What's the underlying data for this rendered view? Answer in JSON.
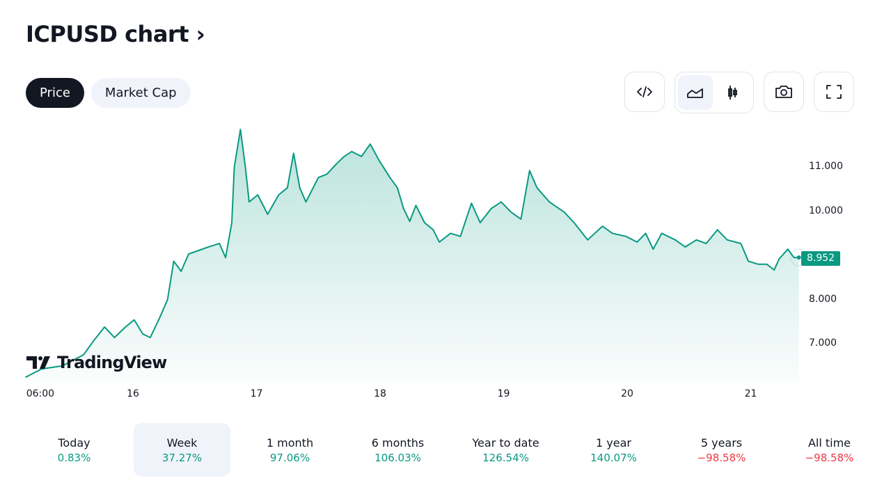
{
  "header": {
    "title": "ICPUSD chart",
    "chevron": "›"
  },
  "tabs": [
    {
      "label": "Price",
      "active": true
    },
    {
      "label": "Market Cap",
      "active": false
    }
  ],
  "toolbar": {
    "icons": [
      "embed-code-icon",
      "area-chart-icon",
      "candles-icon",
      "camera-icon",
      "fullscreen-icon"
    ]
  },
  "colors": {
    "line": "#089981",
    "up": "#089981",
    "down": "#f23645"
  },
  "chart_data": {
    "type": "area",
    "symbol": "ICPUSD",
    "last_price": "8.952",
    "y_ticks": [
      "11.000",
      "10.000",
      "8.000",
      "7.000"
    ],
    "y_tick_values": [
      11,
      10,
      8,
      7
    ],
    "x_ticks": [
      "06:00",
      "16",
      "17",
      "18",
      "19",
      "20",
      "21"
    ],
    "x_tick_values": [
      15.25,
      16,
      17,
      18,
      19,
      20,
      21
    ],
    "points": [
      [
        15.13,
        6.24
      ],
      [
        15.26,
        6.43
      ],
      [
        15.43,
        6.5
      ],
      [
        15.49,
        6.59
      ],
      [
        15.6,
        6.75
      ],
      [
        15.68,
        7.06
      ],
      [
        15.77,
        7.38
      ],
      [
        15.85,
        7.14
      ],
      [
        15.94,
        7.38
      ],
      [
        16.01,
        7.54
      ],
      [
        16.08,
        7.22
      ],
      [
        16.14,
        7.14
      ],
      [
        16.22,
        7.61
      ],
      [
        16.28,
        8.0
      ],
      [
        16.33,
        8.87
      ],
      [
        16.39,
        8.64
      ],
      [
        16.45,
        9.03
      ],
      [
        16.53,
        9.11
      ],
      [
        16.61,
        9.19
      ],
      [
        16.7,
        9.27
      ],
      [
        16.75,
        8.95
      ],
      [
        16.8,
        9.74
      ],
      [
        16.82,
        11.0
      ],
      [
        16.87,
        11.85
      ],
      [
        16.91,
        11.0
      ],
      [
        16.94,
        10.21
      ],
      [
        17.01,
        10.37
      ],
      [
        17.09,
        9.93
      ],
      [
        17.18,
        10.37
      ],
      [
        17.25,
        10.53
      ],
      [
        17.3,
        11.31
      ],
      [
        17.35,
        10.53
      ],
      [
        17.4,
        10.21
      ],
      [
        17.5,
        10.76
      ],
      [
        17.57,
        10.84
      ],
      [
        17.64,
        11.05
      ],
      [
        17.71,
        11.24
      ],
      [
        17.77,
        11.35
      ],
      [
        17.85,
        11.24
      ],
      [
        17.92,
        11.52
      ],
      [
        17.99,
        11.16
      ],
      [
        18.08,
        10.76
      ],
      [
        18.14,
        10.53
      ],
      [
        18.19,
        10.06
      ],
      [
        18.24,
        9.77
      ],
      [
        18.29,
        10.13
      ],
      [
        18.36,
        9.74
      ],
      [
        18.43,
        9.58
      ],
      [
        18.48,
        9.3
      ],
      [
        18.57,
        9.5
      ],
      [
        18.65,
        9.43
      ],
      [
        18.74,
        10.18
      ],
      [
        18.81,
        9.74
      ],
      [
        18.9,
        10.06
      ],
      [
        18.98,
        10.21
      ],
      [
        19.06,
        9.98
      ],
      [
        19.14,
        9.82
      ],
      [
        19.21,
        10.92
      ],
      [
        19.27,
        10.53
      ],
      [
        19.37,
        10.21
      ],
      [
        19.49,
        9.98
      ],
      [
        19.57,
        9.74
      ],
      [
        19.68,
        9.35
      ],
      [
        19.8,
        9.66
      ],
      [
        19.88,
        9.5
      ],
      [
        19.99,
        9.43
      ],
      [
        20.08,
        9.3
      ],
      [
        20.15,
        9.5
      ],
      [
        20.21,
        9.14
      ],
      [
        20.28,
        9.5
      ],
      [
        20.39,
        9.35
      ],
      [
        20.47,
        9.19
      ],
      [
        20.56,
        9.35
      ],
      [
        20.64,
        9.27
      ],
      [
        20.73,
        9.58
      ],
      [
        20.81,
        9.35
      ],
      [
        20.92,
        9.27
      ],
      [
        20.98,
        8.87
      ],
      [
        21.06,
        8.8
      ],
      [
        21.13,
        8.8
      ],
      [
        21.19,
        8.67
      ],
      [
        21.23,
        8.92
      ],
      [
        21.3,
        9.14
      ],
      [
        21.35,
        8.95
      ],
      [
        21.39,
        8.952
      ]
    ]
  },
  "watermark": "TradingView",
  "periods": [
    {
      "label": "Today",
      "value": "0.83%",
      "dir": "up"
    },
    {
      "label": "Week",
      "value": "37.27%",
      "dir": "up",
      "active": true
    },
    {
      "label": "1 month",
      "value": "97.06%",
      "dir": "up"
    },
    {
      "label": "6 months",
      "value": "106.03%",
      "dir": "up"
    },
    {
      "label": "Year to date",
      "value": "126.54%",
      "dir": "up"
    },
    {
      "label": "1 year",
      "value": "140.07%",
      "dir": "up"
    },
    {
      "label": "5 years",
      "value": "−98.58%",
      "dir": "down"
    },
    {
      "label": "All time",
      "value": "−98.58%",
      "dir": "down"
    }
  ]
}
